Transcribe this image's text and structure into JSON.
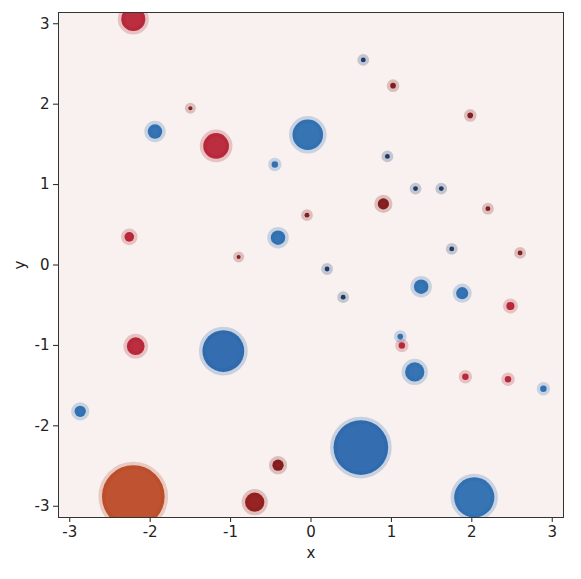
{
  "chart_data": {
    "type": "scatter",
    "x_label": "x",
    "y_label": "y",
    "xlim": [
      -3.14,
      3.14
    ],
    "ylim": [
      -3.14,
      3.14
    ],
    "xticks": [
      -3,
      -2,
      -1,
      0,
      1,
      2,
      3
    ],
    "yticks": [
      -3,
      -2,
      -1,
      0,
      1,
      2,
      3
    ],
    "grid": false,
    "x": [
      -1.94,
      -1.18,
      -0.04,
      -0.41,
      0.9,
      1.37,
      1.88,
      2.48,
      -1.09,
      -2.18,
      1.29,
      0.62,
      2.03,
      -2.21,
      -0.7,
      -0.41,
      -2.87,
      -2.26,
      1.92,
      2.45,
      2.89,
      1.13,
      1.11,
      -2.21,
      1.02,
      1.98,
      -0.45,
      0.65,
      1.3,
      1.62,
      2.2,
      -0.05,
      0.2,
      -0.9,
      2.6,
      0.4,
      -1.5,
      1.75,
      0.95
    ],
    "y": [
      1.66,
      1.48,
      1.62,
      0.34,
      0.76,
      -0.27,
      -0.35,
      -0.51,
      -1.07,
      -1.01,
      -1.33,
      -2.27,
      -2.89,
      -2.88,
      -2.95,
      -2.49,
      -1.82,
      0.35,
      -1.39,
      -1.42,
      -1.54,
      -1.0,
      -0.89,
      3.06,
      2.23,
      1.86,
      1.25,
      2.55,
      0.95,
      0.95,
      0.7,
      0.62,
      -0.05,
      0.1,
      0.15,
      -0.4,
      1.95,
      0.2,
      1.35
    ],
    "sizes": [
      0.09,
      0.16,
      0.19,
      0.09,
      0.07,
      0.09,
      0.075,
      0.05,
      0.26,
      0.11,
      0.12,
      0.34,
      0.25,
      0.39,
      0.12,
      0.07,
      0.07,
      0.06,
      0.04,
      0.04,
      0.04,
      0.04,
      0.035,
      0.15,
      0.035,
      0.035,
      0.04,
      0.03,
      0.03,
      0.03,
      0.03,
      0.03,
      0.03,
      0.025,
      0.03,
      0.03,
      0.025,
      0.03,
      0.03
    ],
    "colors": [
      "#2166ac",
      "#b2182b",
      "#2166ac",
      "#2166ac",
      "#7a0c0c",
      "#2166ac",
      "#2166ac",
      "#b2182b",
      "#1f5fa8",
      "#b2182b",
      "#2166ac",
      "#1f5fa8",
      "#2166ac",
      "#b8401c",
      "#8b0d0d",
      "#7a0c0c",
      "#2166ac",
      "#b2182b",
      "#b2182b",
      "#b2182b",
      "#2166ac",
      "#b2182b",
      "#2166ac",
      "#b2182b",
      "#7a0c0c",
      "#7a0c0c",
      "#2166ac",
      "#0a2a5e",
      "#0a2a5e",
      "#0a2a5e",
      "#7a0c0c",
      "#7a0c0c",
      "#0a2a5e",
      "#7a0c0c",
      "#7a0c0c",
      "#0a2a5e",
      "#7a0c0c",
      "#0a2a5e",
      "#0a2a5e"
    ]
  }
}
